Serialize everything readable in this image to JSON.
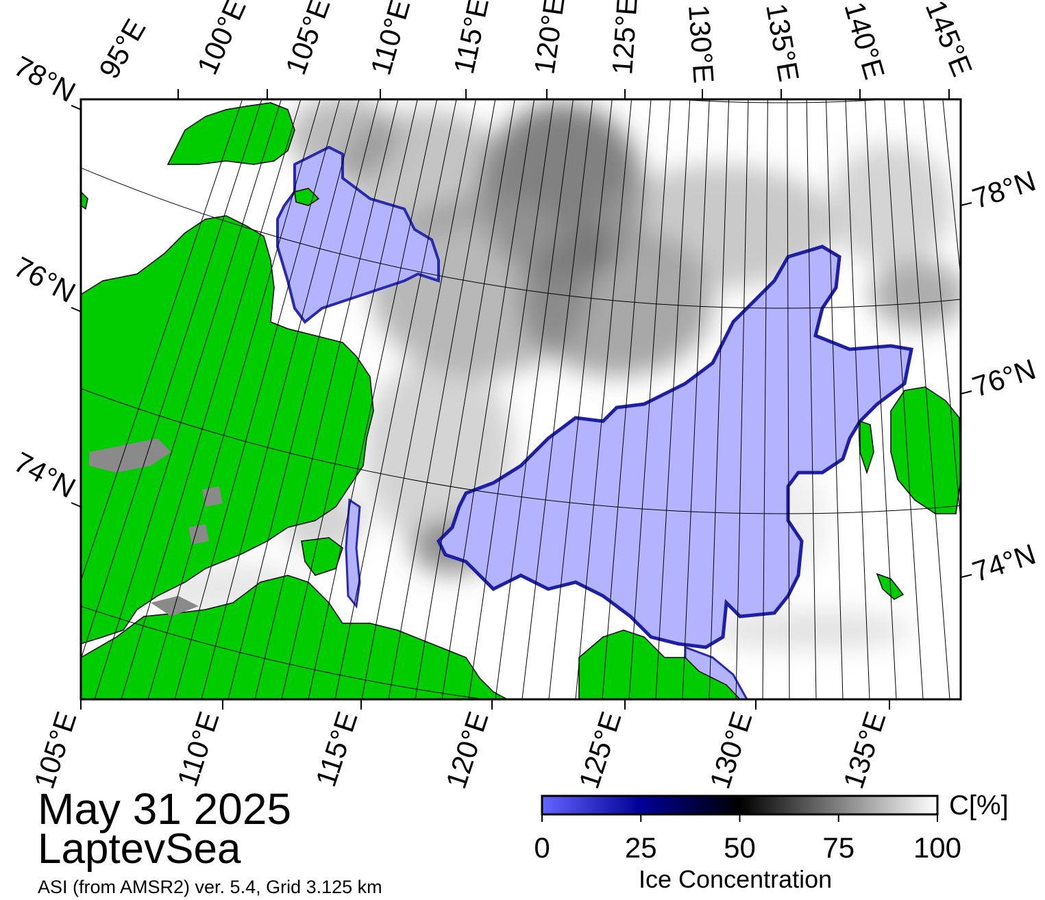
{
  "map": {
    "date": "May 31 2025",
    "region": "LaptevSea",
    "source": "ASI (from AMSR2) ver. 5.4,  Grid 3.125 km",
    "colors": {
      "land": "#00cc00",
      "open_water": "#b3b3ff",
      "grid_line": "#000000",
      "frame": "#000000"
    },
    "top_lon_labels": [
      "95°E",
      "100°E",
      "105°E",
      "110°E",
      "115°E",
      "120°E",
      "125°E",
      "130°E",
      "135°E",
      "140°E",
      "145°E"
    ],
    "bottom_lon_labels": [
      "105°E",
      "110°E",
      "115°E",
      "120°E",
      "125°E",
      "130°E",
      "135°E"
    ],
    "left_lat_labels": [
      "78°N",
      "76°N",
      "74°N"
    ],
    "right_lat_labels": [
      "78°N",
      "76°N",
      "74°N"
    ]
  },
  "colorbar": {
    "title": "Ice Concentration",
    "unit": "C[%]",
    "ticks": [
      "0",
      "25",
      "50",
      "75",
      "100"
    ],
    "min": 0,
    "max": 100,
    "stops": [
      {
        "value": 0,
        "color": "#6464ff"
      },
      {
        "value": 25,
        "color": "#000096"
      },
      {
        "value": 50,
        "color": "#000000"
      },
      {
        "value": 75,
        "color": "#808080"
      },
      {
        "value": 100,
        "color": "#ffffff"
      }
    ]
  }
}
